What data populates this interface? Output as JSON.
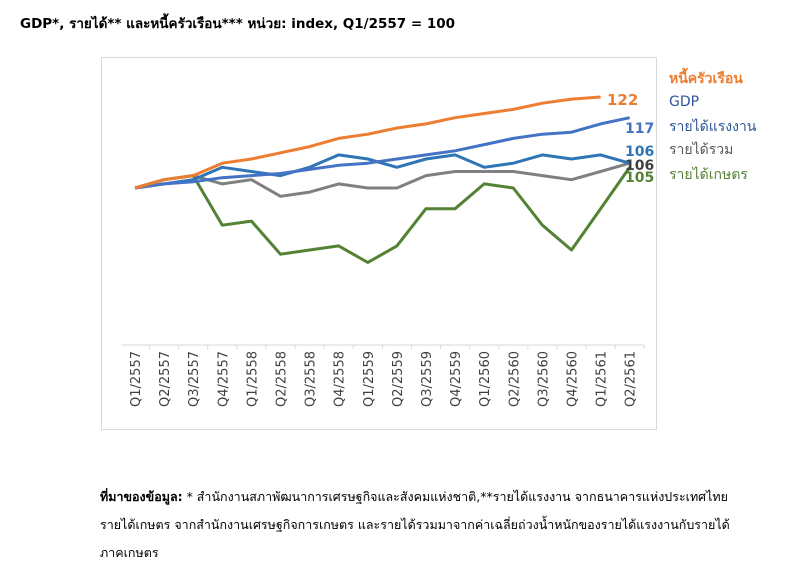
{
  "title": "GDP*, รายได้** และหนี้ครัวเรือน***  หน่วย: index, Q1/2557 = 100",
  "chart_data": {
    "type": "line",
    "categories": [
      "Q1/2557",
      "Q2/2557",
      "Q3/2557",
      "Q4/2557",
      "Q1/2558",
      "Q2/2558",
      "Q3/2558",
      "Q4/2558",
      "Q1/2559",
      "Q2/2559",
      "Q3/2559",
      "Q4/2559",
      "Q1/2560",
      "Q2/2560",
      "Q3/2560",
      "Q4/2560",
      "Q1/2561",
      "Q2/2561"
    ],
    "ylim": [
      70,
      130
    ],
    "grid": false,
    "legend": "right, labels at line ends",
    "series": [
      {
        "name": "หนี้ครัวเรือน",
        "color": "#ED7D31",
        "end_label": "122",
        "values": [
          100,
          102,
          103,
          106,
          107,
          108.5,
          110,
          112,
          113,
          114.5,
          115.5,
          117,
          118,
          119,
          120.5,
          121.5,
          122,
          null
        ]
      },
      {
        "name": "GDP",
        "color": "#4472C4",
        "end_label": "117",
        "values": [
          100,
          101,
          101.5,
          102.5,
          103,
          103.5,
          104.5,
          105.5,
          106,
          107,
          108,
          109,
          110.5,
          112,
          113,
          113.5,
          115.5,
          117
        ]
      },
      {
        "name": "รายได้แรงงาน",
        "color": "#2E75B6",
        "end_label": "106",
        "values": [
          100,
          101,
          102,
          105,
          104,
          103,
          105,
          108,
          107,
          105,
          107,
          108,
          105,
          106,
          108,
          107,
          108,
          106
        ]
      },
      {
        "name": "รายได้รวม",
        "color": "#808080",
        "end_label": "106",
        "values": [
          100,
          102,
          103,
          101,
          102,
          98,
          99,
          101,
          100,
          100,
          103,
          104,
          104,
          104,
          103,
          102,
          104,
          106
        ]
      },
      {
        "name": "รายได้เกษตร",
        "color": "#548235",
        "end_label": "105",
        "values": [
          100,
          102,
          103,
          91,
          92,
          84,
          85,
          86,
          82,
          86,
          95,
          95,
          101,
          100,
          91,
          85,
          95,
          105
        ]
      }
    ]
  },
  "legend_labels": {
    "household_debt": "หนี้ครัวเรือน",
    "gdp": "GDP",
    "labor_income": "รายได้แรงงาน",
    "total_income": "รายได้รวม",
    "farm_income": "รายได้เกษตร"
  },
  "note": {
    "bold": "ที่มาของข้อมูล:",
    "text": " * สำนักงานสภาพัฒนาการเศรษฐกิจและสังคมแห่งชาติ,**รายได้แรงงาน จากธนาคารแห่งประเทศไทย  รายได้เกษตร จากสำนักงานเศรษฐกิจการเกษตร และรายได้รวมมาจากค่าเฉลี่ยถ่วงน้ำหนักของรายได้แรงงานกับรายได้ภาคเกษตร"
  }
}
